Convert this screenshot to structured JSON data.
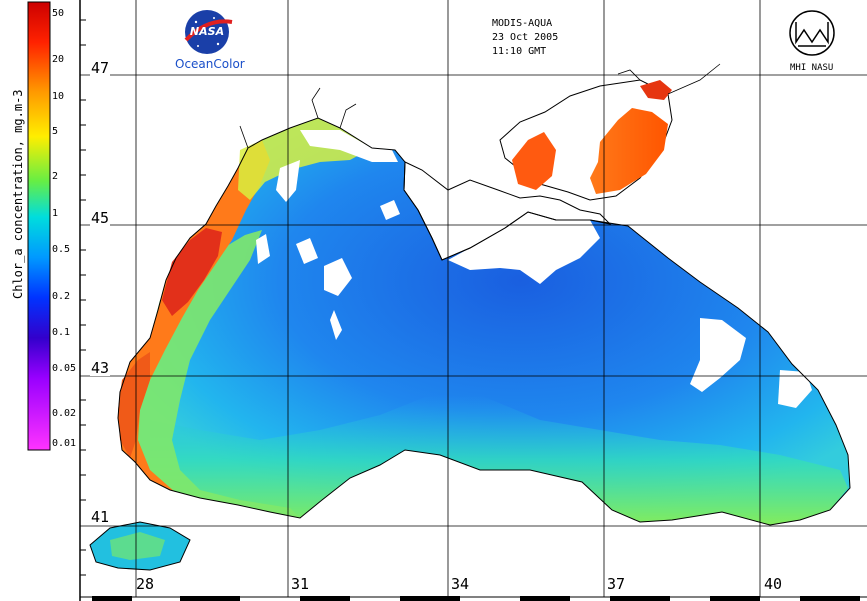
{
  "colorbar": {
    "title": "Chlor_a concentration, mg.m-3",
    "ticks": [
      "50",
      "20",
      "10",
      "5",
      "2",
      "1",
      "0.5",
      "0.2",
      "0.1",
      "0.05",
      "0.02",
      "0.01"
    ],
    "colors": [
      "#cc0000",
      "#ff3300",
      "#ff9900",
      "#ffff00",
      "#66ee44",
      "#00ccdd",
      "#0099ff",
      "#0033ff",
      "#3300cc",
      "#9900ff",
      "#cc33ff",
      "#ff33ff"
    ]
  },
  "satellite": {
    "sensor": "MODIS-AQUA",
    "date": "23 Oct 2005",
    "time": "11:10 GMT"
  },
  "logos": {
    "nasa_text": "NASA",
    "oceancolor_text": "OceanColor",
    "mhi_text": "MHI NASU"
  },
  "latitudes": [
    "47",
    "45",
    "43",
    "41"
  ],
  "longitudes": [
    "28",
    "31",
    "34",
    "37",
    "40"
  ],
  "colors": {
    "land": "#ffffff",
    "coast": "#000000",
    "deep_sea": "#1a6fe8",
    "mid_sea": "#22a8f0",
    "shelf_green": "#5fe08a",
    "coastal_orange": "#ff8c1a",
    "coastal_red": "#e03010",
    "grid": "#000000"
  }
}
